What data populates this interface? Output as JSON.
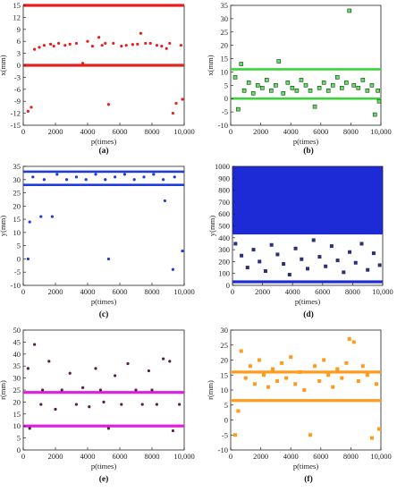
{
  "chart_data": [
    {
      "id": "a",
      "type": "scatter",
      "caption": "(a)",
      "xlabel": "p(times)",
      "ylabel": "x(mm)",
      "xlim": [
        0,
        10000
      ],
      "ylim": [
        -15,
        15
      ],
      "xticks": [
        0,
        2000,
        4000,
        6000,
        8000,
        "10,000"
      ],
      "yticks": [
        -15,
        -12,
        -9,
        -6,
        -3,
        0,
        3,
        6,
        9,
        12,
        15
      ],
      "bands": [
        {
          "y": 15,
          "color": "#e61e1e",
          "thickness": 1.6
        },
        {
          "y": 0,
          "color": "#e61e1e",
          "thickness": 1.6
        }
      ],
      "marker": {
        "shape": "dot",
        "color": "#e61e1e"
      },
      "series": [
        {
          "points": [
            [
              300,
              -11.5
            ],
            [
              500,
              -10.5
            ],
            [
              700,
              4
            ],
            [
              1000,
              4.5
            ],
            [
              1300,
              5
            ],
            [
              1700,
              5.3
            ],
            [
              1900,
              4.8
            ],
            [
              2200,
              5.5
            ],
            [
              2600,
              5
            ],
            [
              2900,
              5.3
            ],
            [
              3300,
              5.5
            ],
            [
              3700,
              0.5
            ],
            [
              4000,
              6
            ],
            [
              4300,
              4.8
            ],
            [
              4700,
              7
            ],
            [
              4900,
              5
            ],
            [
              5100,
              5.5
            ],
            [
              5300,
              -9.8
            ],
            [
              5600,
              5.5
            ],
            [
              6100,
              4.8
            ],
            [
              6400,
              5
            ],
            [
              6800,
              5.2
            ],
            [
              7100,
              5.3
            ],
            [
              7300,
              8
            ],
            [
              7600,
              5.5
            ],
            [
              7900,
              5.5
            ],
            [
              8300,
              5
            ],
            [
              8600,
              4.8
            ],
            [
              8900,
              4.2
            ],
            [
              9100,
              5.5
            ],
            [
              9300,
              -12
            ],
            [
              9500,
              -9.5
            ],
            [
              9800,
              5
            ],
            [
              10000,
              -8.5
            ]
          ]
        }
      ]
    },
    {
      "id": "b",
      "type": "scatter",
      "caption": "(b)",
      "xlabel": "p(times)",
      "ylabel": "x(mm)",
      "xlim": [
        0,
        10000
      ],
      "ylim": [
        -10,
        35
      ],
      "xticks": [
        0,
        2000,
        4000,
        6000,
        8000,
        "10,000"
      ],
      "yticks": [
        -10,
        -5,
        0,
        5,
        10,
        15,
        20,
        25,
        30,
        35
      ],
      "bands": [
        {
          "y": 11,
          "color": "#38d438",
          "thickness": 1.3
        },
        {
          "y": 0,
          "color": "#38d438",
          "thickness": 1.3
        }
      ],
      "marker": {
        "shape": "square",
        "color": "#5fe05f",
        "edge": "#1a3a1a"
      },
      "series": [
        {
          "points": [
            [
              300,
              8
            ],
            [
              500,
              -4
            ],
            [
              700,
              13
            ],
            [
              900,
              3
            ],
            [
              1200,
              6
            ],
            [
              1500,
              2
            ],
            [
              1800,
              5
            ],
            [
              2100,
              4
            ],
            [
              2400,
              7
            ],
            [
              2700,
              3
            ],
            [
              3000,
              5
            ],
            [
              3200,
              14
            ],
            [
              3500,
              2
            ],
            [
              3800,
              6
            ],
            [
              4100,
              4
            ],
            [
              4400,
              3
            ],
            [
              4700,
              7
            ],
            [
              5000,
              5
            ],
            [
              5300,
              3
            ],
            [
              5600,
              -3
            ],
            [
              5900,
              4
            ],
            [
              6200,
              6
            ],
            [
              6500,
              3
            ],
            [
              6800,
              5
            ],
            [
              7100,
              8
            ],
            [
              7400,
              4
            ],
            [
              7700,
              6
            ],
            [
              7900,
              33
            ],
            [
              8200,
              5
            ],
            [
              8500,
              4
            ],
            [
              8800,
              7
            ],
            [
              9100,
              3
            ],
            [
              9400,
              5
            ],
            [
              9600,
              -6
            ],
            [
              9800,
              3
            ],
            [
              10000,
              -1
            ]
          ]
        }
      ]
    },
    {
      "id": "c",
      "type": "scatter",
      "caption": "(c)",
      "xlabel": "p(times)",
      "ylabel": "y(mm)",
      "xlim": [
        0,
        10000
      ],
      "ylim": [
        -10,
        35
      ],
      "xticks": [
        0,
        2000,
        4000,
        6000,
        8000,
        "10,000"
      ],
      "yticks": [
        -10,
        -5,
        0,
        5,
        10,
        15,
        20,
        25,
        30,
        35
      ],
      "bands": [
        {
          "y": 33,
          "color": "#1e3cdc",
          "thickness": 1.3
        },
        {
          "y": 28,
          "color": "#1e3cdc",
          "thickness": 1.3
        }
      ],
      "marker": {
        "shape": "dot",
        "color": "#1e3cdc"
      },
      "series": [
        {
          "points": [
            [
              300,
              0
            ],
            [
              400,
              14
            ],
            [
              1100,
              16
            ],
            [
              1800,
              16
            ],
            [
              5300,
              0
            ],
            [
              8800,
              22
            ],
            [
              9300,
              -4
            ],
            [
              9900,
              3
            ],
            [
              600,
              31
            ],
            [
              1300,
              30
            ],
            [
              2100,
              32
            ],
            [
              2700,
              30
            ],
            [
              3300,
              31
            ],
            [
              3900,
              30
            ],
            [
              4500,
              32
            ],
            [
              5100,
              30
            ],
            [
              5700,
              31
            ],
            [
              6300,
              32
            ],
            [
              6900,
              30
            ],
            [
              7500,
              31
            ],
            [
              8100,
              32
            ],
            [
              8700,
              30
            ],
            [
              9400,
              31
            ]
          ]
        }
      ]
    },
    {
      "id": "d",
      "type": "scatter",
      "caption": "(d)",
      "xlabel": "p(times)",
      "ylabel": "y(mm)",
      "xlim": [
        0,
        10000
      ],
      "ylim": [
        0,
        1000
      ],
      "xticks": [
        0,
        2000,
        4000,
        6000,
        8000,
        "10,000"
      ],
      "yticks": [
        0,
        100,
        200,
        300,
        400,
        500,
        600,
        700,
        800,
        900,
        1000
      ],
      "bands": [
        {
          "y": 440,
          "color": "#1c2bd6",
          "thickness": 1.6
        },
        {
          "y": 30,
          "color": "#1c2bd6",
          "thickness": 1.6
        }
      ],
      "fill": {
        "color": "#1c2bd6",
        "from": 440,
        "to": 1000
      },
      "marker": {
        "shape": "square",
        "color": "#2b2f7a"
      },
      "series": [
        {
          "points": [
            [
              200,
              350
            ],
            [
              600,
              250
            ],
            [
              1000,
              150
            ],
            [
              1400,
              300
            ],
            [
              1800,
              200
            ],
            [
              2200,
              120
            ],
            [
              2600,
              340
            ],
            [
              3000,
              260
            ],
            [
              3400,
              180
            ],
            [
              3800,
              90
            ],
            [
              4200,
              310
            ],
            [
              4600,
              220
            ],
            [
              5000,
              140
            ],
            [
              5400,
              380
            ],
            [
              5800,
              240
            ],
            [
              6200,
              160
            ],
            [
              6600,
              330
            ],
            [
              7000,
              210
            ],
            [
              7400,
              110
            ],
            [
              7800,
              280
            ],
            [
              8200,
              190
            ],
            [
              8600,
              350
            ],
            [
              9000,
              130
            ],
            [
              9400,
              270
            ],
            [
              9800,
              170
            ]
          ]
        }
      ]
    },
    {
      "id": "e",
      "type": "scatter",
      "caption": "(e)",
      "xlabel": "p(times)",
      "ylabel": "r(mm)",
      "xlim": [
        0,
        10000
      ],
      "ylim": [
        0,
        50
      ],
      "xticks": [
        0,
        2000,
        4000,
        6000,
        8000,
        "10,000"
      ],
      "yticks": [
        0,
        5,
        10,
        15,
        20,
        25,
        30,
        35,
        40,
        45,
        50
      ],
      "bands": [
        {
          "y": 24,
          "color": "#e020e0",
          "thickness": 1.6
        },
        {
          "y": 10,
          "color": "#e020e0",
          "thickness": 1.6
        }
      ],
      "marker": {
        "shape": "dot",
        "color": "#5a1a4a"
      },
      "series": [
        {
          "points": [
            [
              300,
              34
            ],
            [
              700,
              44
            ],
            [
              400,
              9
            ],
            [
              1100,
              19
            ],
            [
              1600,
              37
            ],
            [
              2000,
              17
            ],
            [
              2400,
              25
            ],
            [
              2900,
              32
            ],
            [
              3300,
              19
            ],
            [
              3700,
              26
            ],
            [
              4100,
              18
            ],
            [
              4500,
              34
            ],
            [
              5000,
              20
            ],
            [
              5300,
              9
            ],
            [
              5700,
              31
            ],
            [
              6100,
              19
            ],
            [
              6500,
              36
            ],
            [
              7000,
              25
            ],
            [
              7400,
              19
            ],
            [
              7800,
              33
            ],
            [
              8300,
              19
            ],
            [
              8700,
              38
            ],
            [
              9100,
              37
            ],
            [
              9300,
              8
            ],
            [
              9700,
              19
            ],
            [
              1200,
              25
            ],
            [
              4800,
              25
            ],
            [
              8000,
              25
            ]
          ]
        }
      ]
    },
    {
      "id": "f",
      "type": "scatter",
      "caption": "(f)",
      "xlabel": "p(times)",
      "ylabel": "r(mm)",
      "xlim": [
        0,
        10000
      ],
      "ylim": [
        -10,
        30
      ],
      "xticks": [
        0,
        2000,
        4000,
        6000,
        8000,
        "10,000"
      ],
      "yticks": [
        -10,
        -5,
        0,
        5,
        10,
        15,
        20,
        25,
        30
      ],
      "bands": [
        {
          "y": 16,
          "color": "#ff9a1e",
          "thickness": 1.6
        },
        {
          "y": 6.5,
          "color": "#ff9a1e",
          "thickness": 1.6
        }
      ],
      "marker": {
        "shape": "square",
        "color": "#ff9a1e"
      },
      "series": [
        {
          "points": [
            [
              300,
              -5
            ],
            [
              500,
              3
            ],
            [
              700,
              23
            ],
            [
              1000,
              14
            ],
            [
              1300,
              18
            ],
            [
              1600,
              12
            ],
            [
              1900,
              20
            ],
            [
              2200,
              15
            ],
            [
              2500,
              11
            ],
            [
              2800,
              17
            ],
            [
              3100,
              13
            ],
            [
              3400,
              19
            ],
            [
              3700,
              14
            ],
            [
              4000,
              21
            ],
            [
              4300,
              12
            ],
            [
              4600,
              16
            ],
            [
              4900,
              10
            ],
            [
              5300,
              -5
            ],
            [
              5600,
              18
            ],
            [
              5900,
              13
            ],
            [
              6200,
              20
            ],
            [
              6500,
              15
            ],
            [
              6800,
              11
            ],
            [
              7100,
              17
            ],
            [
              7400,
              14
            ],
            [
              7700,
              19
            ],
            [
              7900,
              27
            ],
            [
              8200,
              26
            ],
            [
              8500,
              13
            ],
            [
              8800,
              18
            ],
            [
              9100,
              15
            ],
            [
              9400,
              -6
            ],
            [
              9700,
              12
            ],
            [
              10000,
              -3
            ]
          ]
        }
      ]
    }
  ]
}
